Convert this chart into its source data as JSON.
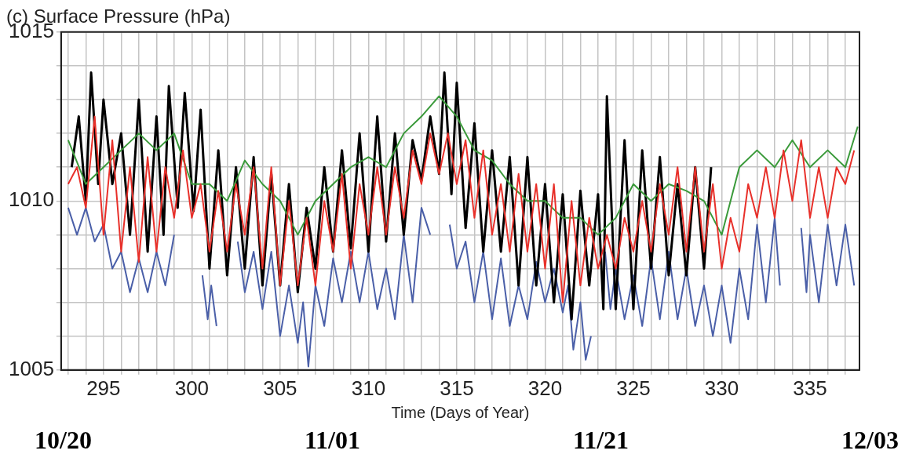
{
  "chart_data": {
    "type": "line",
    "title": "(c) Surface Pressure (hPa)",
    "xlabel": "Time (Days of Year)",
    "annotations": [
      "10/20",
      "11/01",
      "11/21",
      "12/03"
    ],
    "xlim": [
      292.6,
      337.8
    ],
    "ylim": [
      1005,
      1015
    ],
    "xticks": [
      {
        "value": 293,
        "label": null
      },
      {
        "value": 294,
        "label": null
      },
      295,
      {
        "value": 296,
        "label": null
      },
      {
        "value": 297,
        "label": null
      },
      {
        "value": 298,
        "label": null
      },
      {
        "value": 299,
        "label": null
      },
      300,
      {
        "value": 301,
        "label": null
      },
      {
        "value": 302,
        "label": null
      },
      {
        "value": 303,
        "label": null
      },
      {
        "value": 304,
        "label": null
      },
      305,
      {
        "value": 306,
        "label": null
      },
      {
        "value": 307,
        "label": null
      },
      {
        "value": 308,
        "label": null
      },
      {
        "value": 309,
        "label": null
      },
      310,
      {
        "value": 311,
        "label": null
      },
      {
        "value": 312,
        "label": null
      },
      {
        "value": 313,
        "label": null
      },
      {
        "value": 314,
        "label": null
      },
      315,
      {
        "value": 316,
        "label": null
      },
      {
        "value": 317,
        "label": null
      },
      {
        "value": 318,
        "label": null
      },
      {
        "value": 319,
        "label": null
      },
      320,
      {
        "value": 321,
        "label": null
      },
      {
        "value": 322,
        "label": null
      },
      {
        "value": 323,
        "label": null
      },
      {
        "value": 324,
        "label": null
      },
      325,
      {
        "value": 326,
        "label": null
      },
      {
        "value": 327,
        "label": null
      },
      {
        "value": 328,
        "label": null
      },
      {
        "value": 329,
        "label": null
      },
      330,
      {
        "value": 331,
        "label": null
      },
      {
        "value": 332,
        "label": null
      },
      {
        "value": 333,
        "label": null
      },
      {
        "value": 334,
        "label": null
      },
      335,
      {
        "value": 336,
        "label": null
      },
      {
        "value": 337,
        "label": null
      }
    ],
    "yticks": [
      1005,
      {
        "value": 1006,
        "label": null
      },
      {
        "value": 1007,
        "label": null
      },
      {
        "value": 1008,
        "label": null
      },
      {
        "value": 1009,
        "label": null
      },
      1010,
      {
        "value": 1011,
        "label": null
      },
      {
        "value": 1012,
        "label": null
      },
      {
        "value": 1013,
        "label": null
      },
      {
        "value": 1014,
        "label": null
      },
      1015
    ],
    "grid": true,
    "legend": false,
    "marker": "none",
    "line_style": "solid",
    "series": [
      {
        "color": "#4a5fa8",
        "x": [
          293,
          293.5,
          294,
          294.5,
          295,
          295.5,
          296,
          296.5,
          297,
          297.5,
          298,
          298.5,
          299,
          299.8,
          300.6,
          300.9,
          301.1,
          301.4,
          302,
          302.6,
          303,
          303.5,
          304,
          304.5,
          305,
          305.5,
          306,
          306.3,
          306.6,
          307,
          307.5,
          308,
          308.5,
          309,
          309.5,
          310,
          310.5,
          311,
          311.5,
          312,
          312.5,
          313,
          313.5,
          314,
          314.6,
          315,
          315.5,
          316,
          316.5,
          317,
          317.5,
          318,
          318.5,
          319,
          319.5,
          320,
          320.5,
          321,
          321.3,
          321.6,
          322,
          322.3,
          322.6,
          323,
          323.4,
          323.7,
          324,
          324.5,
          325,
          325.5,
          326,
          326.5,
          327,
          327.5,
          328,
          328.5,
          329,
          329.5,
          330,
          330.5,
          331,
          331.5,
          332,
          332.5,
          333,
          333.3,
          333.9,
          334.5,
          334.8,
          335,
          335.5,
          336,
          336.5,
          337,
          337.5
        ],
        "values": [
          1009.8,
          1009,
          1009.8,
          1008.8,
          1009.3,
          1008,
          1008.5,
          1007.3,
          1008.3,
          1007.3,
          1008.5,
          1007.5,
          1009,
          null,
          1007.8,
          1006.5,
          1007.5,
          1006.3,
          null,
          1008.8,
          1007.3,
          1008.5,
          1006.8,
          1008.5,
          1006,
          1007.5,
          1005.8,
          1007,
          1005.1,
          1007.5,
          1006.3,
          1008.3,
          1007,
          1008.5,
          1007,
          1008.5,
          1006.8,
          1008,
          1006.5,
          1009,
          1007,
          1009.8,
          1009,
          null,
          1009.3,
          1008,
          1008.8,
          1007,
          1008.5,
          1006.5,
          1008.3,
          1006.3,
          1007.5,
          1006.5,
          1008.2,
          1007,
          1008,
          1006.7,
          1007.5,
          1005.6,
          1007,
          1005.3,
          1006,
          null,
          1008.5,
          1006.8,
          1008,
          1006.5,
          1007.8,
          1006.3,
          1008.3,
          1006.5,
          1008.5,
          1006.5,
          1008,
          1006.3,
          1007.5,
          1006,
          1007.5,
          1005.8,
          1008,
          1006.5,
          1009.3,
          1007,
          1009.5,
          1007.5,
          null,
          1009.2,
          1007.3,
          1009,
          1007,
          1009.3,
          1007.5,
          1009.3,
          1007.5
        ]
      },
      {
        "color": "#000000",
        "x": [
          293.2,
          293.6,
          294,
          294.3,
          294.7,
          295,
          295.5,
          296,
          296.5,
          297,
          297.5,
          298,
          298.4,
          298.7,
          299.2,
          299.6,
          300.1,
          300.5,
          301,
          301.5,
          302,
          302.5,
          303,
          303.5,
          304,
          304.5,
          305,
          305.5,
          306,
          306.5,
          307,
          307.5,
          308,
          308.5,
          309,
          309.5,
          310,
          310.5,
          311,
          311.5,
          312,
          312.5,
          313,
          313.5,
          314,
          314.3,
          314.7,
          315,
          315.5,
          316,
          316.5,
          317,
          317.5,
          318,
          318.5,
          319,
          319.5,
          320,
          320.5,
          321,
          321.5,
          322,
          322.5,
          323,
          323.3,
          323.5,
          324,
          324.5,
          325,
          325.5,
          326,
          326.5,
          327,
          327.5,
          328,
          328.5,
          329,
          329.4
        ],
        "values": [
          1011,
          1012.5,
          1010,
          1013.8,
          1010.5,
          1013,
          1010.5,
          1012,
          1009,
          1013,
          1008.5,
          1012.5,
          1009,
          1013.4,
          1009.8,
          1013.2,
          1009.7,
          1012.7,
          1008,
          1011.5,
          1007.8,
          1011,
          1008,
          1011.3,
          1007.5,
          1010.8,
          1007.5,
          1010.5,
          1007.3,
          1009.8,
          1008,
          1011,
          1008.5,
          1011.5,
          1008.6,
          1012,
          1008.5,
          1012.5,
          1008.8,
          1012,
          1009,
          1011.8,
          1010.6,
          1012.5,
          1010.8,
          1013.8,
          1010.2,
          1013.5,
          1009.2,
          1012.3,
          1008.5,
          1011.5,
          1008.5,
          1011.3,
          1007.5,
          1011.3,
          1007.5,
          1010.5,
          1007,
          1010.2,
          1006.5,
          1010.3,
          1007.5,
          1010.2,
          1006.8,
          1013.1,
          1006.8,
          1011.8,
          1006.8,
          1011.5,
          1008,
          1011.3,
          1007.8,
          1010.5,
          1007.8,
          1011,
          1008,
          1011
        ]
      },
      {
        "color": "#3a9a3a",
        "x": [
          293,
          294,
          295,
          296,
          297,
          298,
          299,
          300,
          301,
          302,
          303,
          304,
          305,
          306,
          307,
          308,
          309,
          310,
          311,
          312,
          313,
          314,
          315,
          316,
          317,
          318,
          319,
          320,
          321,
          322,
          323,
          324,
          325,
          326,
          327,
          328,
          329,
          330,
          331,
          332,
          333,
          334,
          335,
          336,
          337,
          337.7
        ],
        "values": [
          1011.8,
          1010.5,
          1011,
          1011.5,
          1012,
          1011.5,
          1012,
          1010.5,
          1010.5,
          1010,
          1011.2,
          1010.5,
          1010,
          1009,
          1010,
          1010.5,
          1011,
          1011.3,
          1011,
          1012,
          1012.5,
          1013.1,
          1012.5,
          1011.5,
          1011.2,
          1010.5,
          1010,
          1010,
          1009.5,
          1009.5,
          1009,
          1009.5,
          1010.5,
          1010,
          1010.5,
          1010.3,
          1010,
          1009,
          1011,
          1011.5,
          1011,
          1011.8,
          1011,
          1011.5,
          1011,
          1012.2
        ]
      },
      {
        "color": "#e8302a",
        "x": [
          293,
          293.5,
          294,
          294.5,
          295,
          295.5,
          296,
          296.5,
          297,
          297.5,
          298,
          298.5,
          299,
          299.5,
          300,
          300.5,
          301,
          301.5,
          302,
          302.5,
          303,
          303.5,
          304,
          304.5,
          305,
          305.5,
          306,
          306.5,
          307,
          307.5,
          308,
          308.5,
          309,
          309.5,
          310,
          310.5,
          311,
          311.5,
          312,
          312.5,
          313,
          313.5,
          314,
          314.5,
          315,
          315.5,
          316,
          316.5,
          317,
          317.5,
          318,
          318.5,
          319,
          319.5,
          320,
          320.5,
          321,
          321.5,
          322,
          322.5,
          323,
          323.5,
          324,
          324.5,
          325,
          325.5,
          326,
          326.5,
          327,
          327.5,
          328,
          328.5,
          329,
          329.5,
          330,
          330.5,
          331,
          331.5,
          332,
          332.5,
          333,
          333.5,
          334,
          334.5,
          335,
          335.5,
          336,
          336.5,
          337,
          337.5
        ],
        "values": [
          1010.5,
          1011,
          1009.8,
          1012.5,
          1009,
          1011.8,
          1008.5,
          1011,
          1008.2,
          1011.3,
          1008.5,
          1011,
          1009.5,
          1011.5,
          1009.5,
          1010.5,
          1008.5,
          1010.3,
          1008.5,
          1010.5,
          1009,
          1011,
          1008,
          1011,
          1007.5,
          1010,
          1007.5,
          1009.5,
          1007.5,
          1010,
          1008.5,
          1010.8,
          1008,
          1010.5,
          1009,
          1011,
          1009,
          1011,
          1009.5,
          1011.5,
          1010.5,
          1012,
          1010.8,
          1012,
          1010.5,
          1011.8,
          1009.5,
          1011.5,
          1009,
          1010.5,
          1008.5,
          1010.8,
          1008.5,
          1010.5,
          1008,
          1010.5,
          1007,
          1010,
          1007.5,
          1009.5,
          1008,
          1009,
          1008,
          1009.5,
          1008.5,
          1010,
          1008.5,
          1010.5,
          1009,
          1011,
          1008.5,
          1011,
          1008.5,
          1010.5,
          1008,
          1009.5,
          1008.5,
          1010.5,
          1009.5,
          1011,
          1009.5,
          1011.5,
          1010,
          1011.8,
          1009.5,
          1011,
          1009.5,
          1011,
          1010.5,
          1011.5
        ]
      }
    ]
  }
}
